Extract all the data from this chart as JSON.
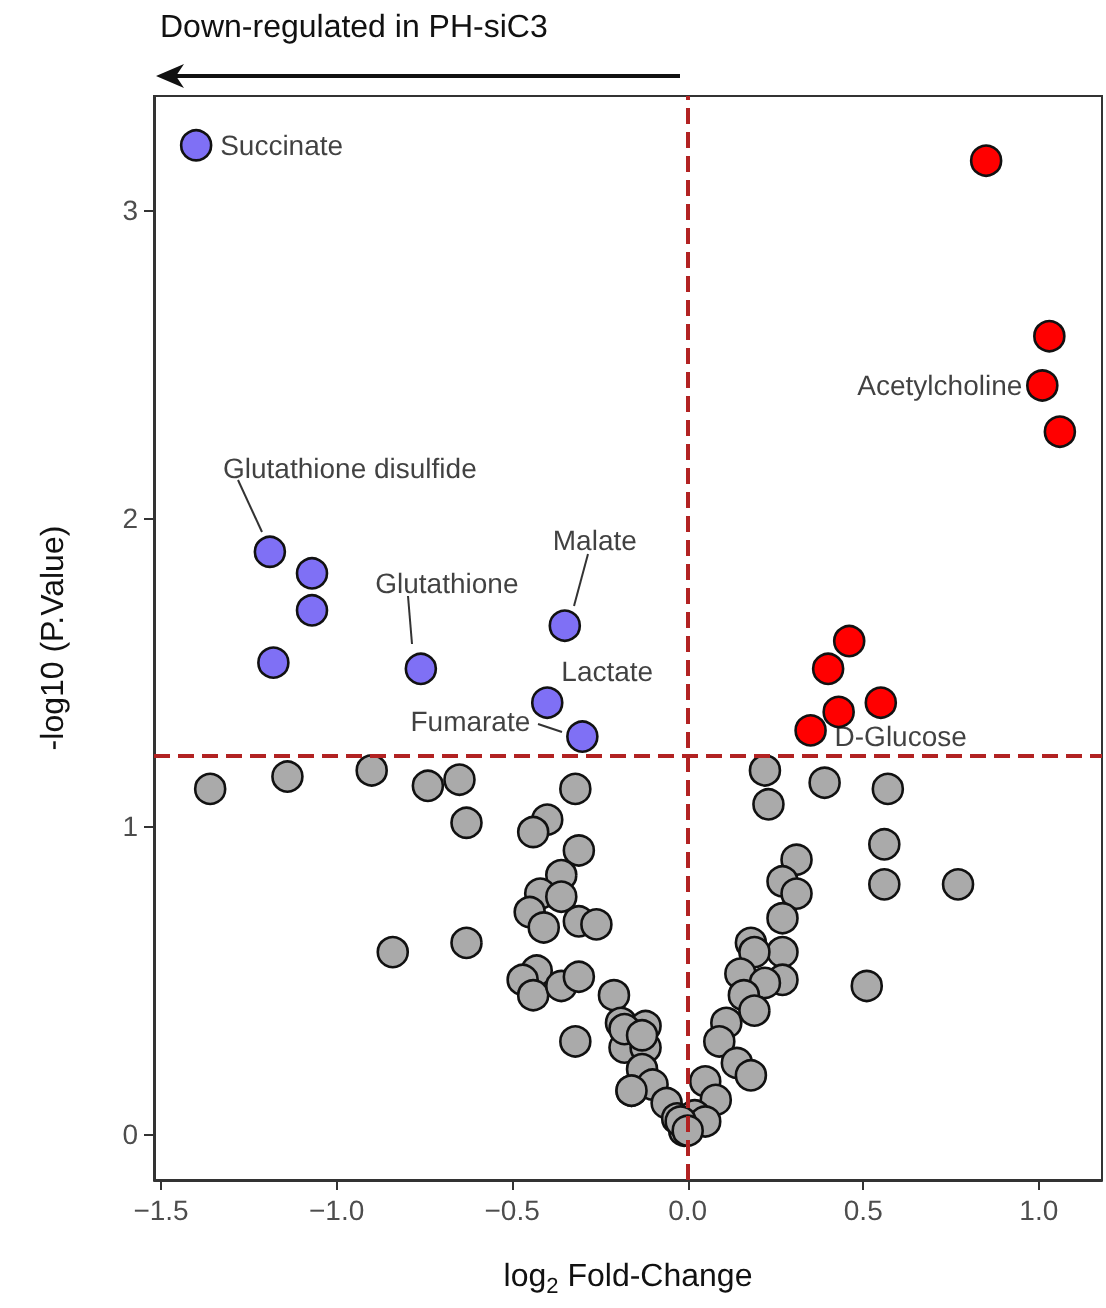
{
  "chart_data": {
    "type": "scatter",
    "xlabel": "log$_{2}$ Fold-Change",
    "ylabel": "-log10 (P.Value)",
    "annotations": [
      "Down-regulated in PH-siC3",
      {
        "text": "Succinate",
        "x": -1.4,
        "y": 3.21
      },
      {
        "text": "Glutathione disulfide",
        "x": -1.19,
        "y": 1.89
      },
      {
        "text": "Glutathione",
        "x": -0.76,
        "y": 1.51
      },
      {
        "text": "Malate",
        "x": -0.35,
        "y": 1.65
      },
      {
        "text": "Lactate",
        "x": -0.4,
        "y": 1.4
      },
      {
        "text": "Fumarate",
        "x": -0.3,
        "y": 1.29
      },
      {
        "text": "Acetylcholine",
        "x": 1.01,
        "y": 2.43
      },
      {
        "text": "D-Glucose",
        "x": 0.35,
        "y": 1.31
      }
    ],
    "series": [
      {
        "color": "#aaaaaa",
        "x": [
          -1.36,
          -1.14,
          -0.9,
          -0.74,
          -0.65,
          -0.63,
          -0.32,
          -0.4,
          -0.44,
          -0.31,
          -0.36,
          -0.42,
          -0.36,
          -0.45,
          -0.41,
          -0.31,
          -0.26,
          -0.84,
          -0.63,
          -0.43,
          -0.47,
          -0.44,
          -0.36,
          -0.31,
          -0.21,
          -0.32,
          -0.19,
          -0.12,
          -0.18,
          -0.12,
          -0.13,
          -0.16,
          -0.1,
          -0.06,
          -0.01,
          -0.03,
          0.22,
          0.39,
          0.57,
          0.23,
          0.56,
          0.56,
          0.77,
          0.31,
          0.27,
          0.31,
          0.27,
          0.18,
          0.27,
          0.19,
          0.15,
          0.27,
          0.22,
          0.51,
          0.16,
          0.19,
          0.11,
          0.09,
          0.14,
          0.18,
          0.05,
          0.08,
          0.02,
          0.05,
          -0.02,
          0.0,
          -0.18,
          -0.13,
          -0.16
        ],
        "values": [
          1.12,
          1.16,
          1.18,
          1.13,
          1.15,
          1.01,
          1.12,
          1.02,
          0.98,
          0.92,
          0.84,
          0.78,
          0.77,
          0.72,
          0.67,
          0.69,
          0.68,
          0.59,
          0.62,
          0.53,
          0.5,
          0.45,
          0.48,
          0.51,
          0.45,
          0.3,
          0.36,
          0.35,
          0.28,
          0.28,
          0.21,
          0.14,
          0.16,
          0.1,
          0.01,
          0.05,
          1.18,
          1.14,
          1.12,
          1.07,
          0.94,
          0.81,
          0.81,
          0.89,
          0.82,
          0.78,
          0.7,
          0.62,
          0.59,
          0.59,
          0.52,
          0.5,
          0.49,
          0.48,
          0.45,
          0.4,
          0.36,
          0.3,
          0.23,
          0.19,
          0.17,
          0.11,
          0.06,
          0.04,
          0.04,
          0.01,
          0.34,
          0.32,
          0.14
        ]
      },
      {
        "color": "#7f70f5",
        "x": [
          -1.4,
          -1.19,
          -1.07,
          -1.07,
          -1.18,
          -0.76,
          -0.35,
          -0.4,
          -0.3
        ],
        "values": [
          3.21,
          1.89,
          1.82,
          1.7,
          1.53,
          1.51,
          1.65,
          1.4,
          1.29
        ]
      },
      {
        "color": "#ff0000",
        "x": [
          0.85,
          1.03,
          1.01,
          1.06,
          0.46,
          0.4,
          0.43,
          0.55,
          0.35
        ],
        "values": [
          3.16,
          2.59,
          2.43,
          2.28,
          1.6,
          1.51,
          1.37,
          1.4,
          1.31
        ]
      }
    ],
    "marker": "circle",
    "xlim": [
      -1.52,
      1.18
    ],
    "xticks": [
      {
        "value": -1.5,
        "label": "−1.5"
      },
      {
        "value": -1,
        "label": "−1.0"
      },
      {
        "value": -0.5,
        "label": "−0.5"
      },
      {
        "value": 0,
        "label": "0.0"
      },
      {
        "value": 0.5,
        "label": "0.5"
      },
      {
        "value": 1,
        "label": "1.0"
      }
    ],
    "ylim": [
      -0.15,
      3.37
    ],
    "yticks": [
      0,
      1,
      2,
      3
    ],
    "ref_lines": [
      {
        "axis": "y",
        "value": 1.23,
        "color": "#b22222",
        "line_style": "dashed"
      },
      {
        "axis": "x",
        "value": 0,
        "color": "#b22222",
        "line_style": "dashed"
      }
    ],
    "grid": false
  }
}
